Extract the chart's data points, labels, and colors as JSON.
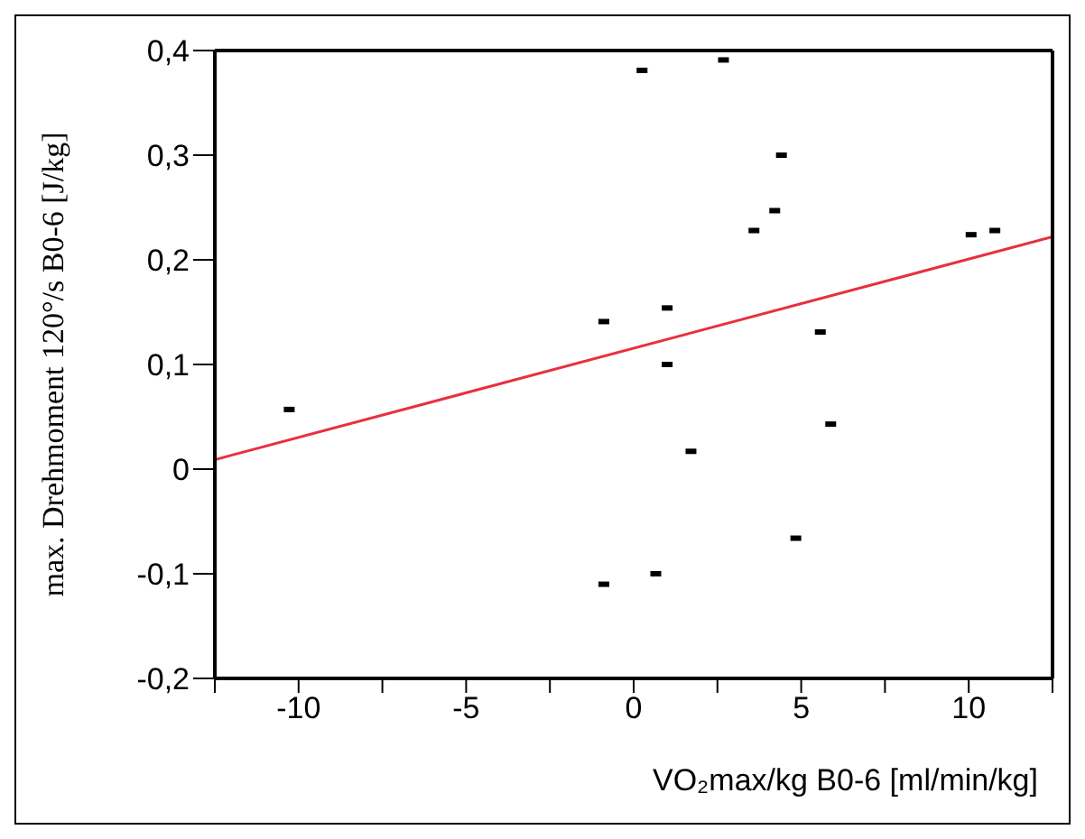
{
  "chart_data": {
    "type": "scatter",
    "xlabel": "VO₂max/kg B0-6 [ml/min/kg]",
    "ylabel": "max. Drehmoment 120°/s B0-6 [J/kg]",
    "x": [
      0.25,
      2.68,
      4.41,
      4.21,
      3.59,
      10.07,
      10.78,
      1.0,
      -0.89,
      5.57,
      1.0,
      -10.28,
      1.71,
      5.88,
      4.84,
      0.66,
      -0.89
    ],
    "series": [
      {
        "color": "#000000",
        "values": [
          0.381,
          0.391,
          0.3,
          0.247,
          0.228,
          0.224,
          0.228,
          0.154,
          0.141,
          0.131,
          0.1,
          0.057,
          0.017,
          0.043,
          -0.066,
          -0.1,
          -0.11
        ]
      },
      {
        "type": "line",
        "marker": "none",
        "color": "#e8303f",
        "x": [
          -12.5,
          12.5
        ],
        "values": [
          0.009,
          0.222
        ]
      }
    ],
    "marker": "square",
    "xlim": [
      -12.5,
      12.5
    ],
    "xticks": [
      {
        "value": -12.5,
        "label": null
      },
      -10,
      {
        "value": -7.5,
        "label": null
      },
      -5,
      {
        "value": -2.5,
        "label": null
      },
      0,
      {
        "value": 2.5,
        "label": null
      },
      5,
      {
        "value": 7.5,
        "label": null
      },
      10,
      {
        "value": 12.5,
        "label": null
      }
    ],
    "ylim": [
      -0.2,
      0.4
    ],
    "yticks": [
      {
        "value": -0.2,
        "label": "-0,2"
      },
      {
        "value": -0.1,
        "label": "-0,1"
      },
      0,
      {
        "value": 0.1,
        "label": "0,1"
      },
      {
        "value": 0.2,
        "label": "0,2"
      },
      {
        "value": 0.3,
        "label": "0,3"
      },
      {
        "value": 0.4,
        "label": "0,4"
      }
    ]
  }
}
